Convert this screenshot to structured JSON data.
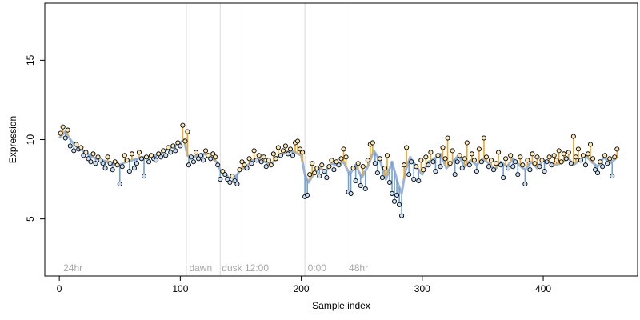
{
  "chart_data": {
    "type": "scatter",
    "title": "",
    "xlabel": "Sample index",
    "ylabel": "Expression",
    "xlim": [
      -12,
      478
    ],
    "ylim": [
      1.4,
      18.6
    ],
    "x_ticks": [
      0,
      100,
      200,
      300,
      400
    ],
    "y_ticks": [
      5,
      10,
      15
    ],
    "grid": false,
    "vlines": [
      105,
      133,
      151,
      203,
      237
    ],
    "annotations": [
      {
        "text": "24hr",
        "x": 2
      },
      {
        "text": "dawn",
        "x": 106
      },
      {
        "text": "dusk",
        "x": 133
      },
      {
        "text": "12:00",
        "x": 152
      },
      {
        "text": "0:00",
        "x": 204
      },
      {
        "text": "48hr",
        "x": 238
      }
    ],
    "colors": {
      "fit_line": "#9bb5d8",
      "residual_above": "#f5a623",
      "residual_below": "#6fa0d8",
      "point_fill": "#fde9b8",
      "point_fill_below": "#c9def3",
      "point_stroke": "#000000",
      "vline": "#d9d9d9",
      "annotation": "#a8a8a8"
    },
    "series": [
      {
        "x": [
          0,
          5,
          10,
          15,
          20,
          25,
          30,
          35,
          40,
          45,
          50,
          55,
          60,
          65,
          70,
          75,
          80,
          85,
          90,
          95,
          100,
          103,
          106,
          110,
          115,
          120,
          125,
          130,
          133,
          136,
          140,
          145,
          150,
          155,
          160,
          165,
          170,
          175,
          180,
          185,
          190,
          195,
          200,
          203,
          206,
          210,
          215,
          220,
          225,
          230,
          235,
          240,
          245,
          250,
          255,
          260,
          265,
          270,
          275,
          280,
          283,
          286,
          290,
          295,
          300,
          305,
          310,
          315,
          320,
          325,
          330,
          335,
          340,
          345,
          350,
          355,
          360,
          365,
          370,
          375,
          380,
          385,
          390,
          395,
          400,
          405,
          410,
          415,
          420,
          425,
          430,
          435,
          440,
          445,
          450,
          455,
          460
        ],
        "y": [
          10.1,
          10.5,
          9.9,
          9.5,
          9.3,
          9.0,
          8.8,
          8.7,
          8.6,
          8.4,
          8.4,
          8.6,
          8.7,
          8.8,
          8.9,
          8.9,
          9.0,
          9.2,
          9.4,
          9.6,
          9.8,
          10.0,
          9.0,
          8.9,
          9.0,
          9.1,
          8.9,
          8.6,
          8.1,
          7.9,
          7.6,
          7.6,
          8.1,
          8.3,
          8.7,
          8.8,
          8.6,
          8.4,
          8.9,
          9.1,
          9.3,
          9.2,
          9.0,
          7.8,
          7.3,
          7.8,
          8.2,
          8.0,
          8.5,
          8.4,
          8.6,
          7.8,
          8.4,
          7.6,
          8.3,
          9.3,
          8.7,
          7.5,
          8.6,
          7.2,
          6.6,
          8.0,
          8.9,
          8.3,
          7.8,
          8.6,
          8.8,
          9.1,
          8.2,
          8.6,
          9.0,
          8.3,
          8.7,
          8.4,
          8.8,
          8.5,
          8.1,
          8.6,
          8.3,
          8.8,
          8.4,
          8.1,
          8.6,
          8.2,
          8.7,
          8.6,
          8.4,
          8.5,
          8.9,
          8.4,
          8.7,
          9.0,
          8.6,
          8.3,
          8.9,
          8.5,
          8.8
        ]
      }
    ],
    "points": [
      {
        "x": 1,
        "y": 10.4
      },
      {
        "x": 3,
        "y": 10.8
      },
      {
        "x": 5,
        "y": 10.1
      },
      {
        "x": 7,
        "y": 10.6
      },
      {
        "x": 9,
        "y": 9.6
      },
      {
        "x": 12,
        "y": 9.3
      },
      {
        "x": 14,
        "y": 9.7
      },
      {
        "x": 16,
        "y": 9.4
      },
      {
        "x": 18,
        "y": 9.5
      },
      {
        "x": 20,
        "y": 9.0
      },
      {
        "x": 22,
        "y": 9.2
      },
      {
        "x": 24,
        "y": 8.8
      },
      {
        "x": 26,
        "y": 8.6
      },
      {
        "x": 28,
        "y": 9.1
      },
      {
        "x": 30,
        "y": 8.5
      },
      {
        "x": 32,
        "y": 8.9
      },
      {
        "x": 34,
        "y": 8.7
      },
      {
        "x": 36,
        "y": 8.5
      },
      {
        "x": 38,
        "y": 8.2
      },
      {
        "x": 40,
        "y": 8.9
      },
      {
        "x": 42,
        "y": 8.5
      },
      {
        "x": 44,
        "y": 8.1
      },
      {
        "x": 46,
        "y": 8.6
      },
      {
        "x": 48,
        "y": 8.4
      },
      {
        "x": 50,
        "y": 7.2
      },
      {
        "x": 52,
        "y": 8.3
      },
      {
        "x": 54,
        "y": 9.0
      },
      {
        "x": 56,
        "y": 8.7
      },
      {
        "x": 58,
        "y": 8.0
      },
      {
        "x": 60,
        "y": 9.1
      },
      {
        "x": 62,
        "y": 8.2
      },
      {
        "x": 64,
        "y": 8.5
      },
      {
        "x": 66,
        "y": 9.2
      },
      {
        "x": 68,
        "y": 8.8
      },
      {
        "x": 70,
        "y": 7.7
      },
      {
        "x": 72,
        "y": 8.9
      },
      {
        "x": 74,
        "y": 8.6
      },
      {
        "x": 76,
        "y": 9.0
      },
      {
        "x": 78,
        "y": 8.8
      },
      {
        "x": 80,
        "y": 8.7
      },
      {
        "x": 82,
        "y": 9.1
      },
      {
        "x": 84,
        "y": 8.9
      },
      {
        "x": 86,
        "y": 9.3
      },
      {
        "x": 88,
        "y": 9.0
      },
      {
        "x": 90,
        "y": 9.5
      },
      {
        "x": 92,
        "y": 9.2
      },
      {
        "x": 94,
        "y": 9.6
      },
      {
        "x": 96,
        "y": 9.3
      },
      {
        "x": 98,
        "y": 9.8
      },
      {
        "x": 100,
        "y": 9.6
      },
      {
        "x": 102,
        "y": 10.9
      },
      {
        "x": 104,
        "y": 9.9
      },
      {
        "x": 106,
        "y": 10.5
      },
      {
        "x": 107,
        "y": 8.4
      },
      {
        "x": 109,
        "y": 8.9
      },
      {
        "x": 111,
        "y": 8.6
      },
      {
        "x": 113,
        "y": 9.2
      },
      {
        "x": 115,
        "y": 8.8
      },
      {
        "x": 117,
        "y": 9.0
      },
      {
        "x": 119,
        "y": 8.7
      },
      {
        "x": 121,
        "y": 9.3
      },
      {
        "x": 123,
        "y": 9.0
      },
      {
        "x": 125,
        "y": 8.8
      },
      {
        "x": 127,
        "y": 9.1
      },
      {
        "x": 129,
        "y": 8.9
      },
      {
        "x": 131,
        "y": 8.4
      },
      {
        "x": 133,
        "y": 7.5
      },
      {
        "x": 135,
        "y": 8.0
      },
      {
        "x": 137,
        "y": 7.8
      },
      {
        "x": 139,
        "y": 7.5
      },
      {
        "x": 141,
        "y": 7.3
      },
      {
        "x": 143,
        "y": 7.7
      },
      {
        "x": 145,
        "y": 7.4
      },
      {
        "x": 147,
        "y": 7.2
      },
      {
        "x": 149,
        "y": 8.1
      },
      {
        "x": 151,
        "y": 8.6
      },
      {
        "x": 153,
        "y": 8.4
      },
      {
        "x": 155,
        "y": 8.2
      },
      {
        "x": 157,
        "y": 8.8
      },
      {
        "x": 159,
        "y": 8.5
      },
      {
        "x": 161,
        "y": 9.3
      },
      {
        "x": 163,
        "y": 8.7
      },
      {
        "x": 165,
        "y": 9.0
      },
      {
        "x": 167,
        "y": 8.6
      },
      {
        "x": 169,
        "y": 8.9
      },
      {
        "x": 171,
        "y": 8.3
      },
      {
        "x": 173,
        "y": 8.7
      },
      {
        "x": 175,
        "y": 8.4
      },
      {
        "x": 177,
        "y": 9.1
      },
      {
        "x": 179,
        "y": 8.8
      },
      {
        "x": 181,
        "y": 9.5
      },
      {
        "x": 183,
        "y": 9.0
      },
      {
        "x": 185,
        "y": 9.3
      },
      {
        "x": 187,
        "y": 9.6
      },
      {
        "x": 189,
        "y": 9.1
      },
      {
        "x": 191,
        "y": 9.4
      },
      {
        "x": 193,
        "y": 9.0
      },
      {
        "x": 195,
        "y": 9.8
      },
      {
        "x": 197,
        "y": 9.9
      },
      {
        "x": 199,
        "y": 9.4
      },
      {
        "x": 201,
        "y": 9.2
      },
      {
        "x": 203,
        "y": 6.4
      },
      {
        "x": 205,
        "y": 6.5
      },
      {
        "x": 207,
        "y": 7.8
      },
      {
        "x": 209,
        "y": 8.5
      },
      {
        "x": 211,
        "y": 7.9
      },
      {
        "x": 213,
        "y": 8.2
      },
      {
        "x": 215,
        "y": 7.7
      },
      {
        "x": 217,
        "y": 8.4
      },
      {
        "x": 219,
        "y": 8.0
      },
      {
        "x": 221,
        "y": 7.6
      },
      {
        "x": 223,
        "y": 8.3
      },
      {
        "x": 225,
        "y": 8.7
      },
      {
        "x": 227,
        "y": 8.1
      },
      {
        "x": 229,
        "y": 8.6
      },
      {
        "x": 231,
        "y": 8.4
      },
      {
        "x": 233,
        "y": 8.8
      },
      {
        "x": 235,
        "y": 9.4
      },
      {
        "x": 237,
        "y": 8.9
      },
      {
        "x": 239,
        "y": 6.7
      },
      {
        "x": 241,
        "y": 6.6
      },
      {
        "x": 243,
        "y": 8.2
      },
      {
        "x": 245,
        "y": 7.4
      },
      {
        "x": 247,
        "y": 8.5
      },
      {
        "x": 249,
        "y": 7.1
      },
      {
        "x": 251,
        "y": 8.3
      },
      {
        "x": 253,
        "y": 6.9
      },
      {
        "x": 255,
        "y": 8.7
      },
      {
        "x": 257,
        "y": 9.7
      },
      {
        "x": 259,
        "y": 9.8
      },
      {
        "x": 261,
        "y": 8.5
      },
      {
        "x": 263,
        "y": 7.9
      },
      {
        "x": 265,
        "y": 8.8
      },
      {
        "x": 267,
        "y": 7.6
      },
      {
        "x": 269,
        "y": 8.2
      },
      {
        "x": 271,
        "y": 9.0
      },
      {
        "x": 273,
        "y": 7.3
      },
      {
        "x": 275,
        "y": 6.6
      },
      {
        "x": 277,
        "y": 6.1
      },
      {
        "x": 279,
        "y": 6.5
      },
      {
        "x": 281,
        "y": 5.9
      },
      {
        "x": 283,
        "y": 5.2
      },
      {
        "x": 285,
        "y": 8.4
      },
      {
        "x": 287,
        "y": 9.5
      },
      {
        "x": 289,
        "y": 7.8
      },
      {
        "x": 291,
        "y": 8.6
      },
      {
        "x": 293,
        "y": 7.5
      },
      {
        "x": 295,
        "y": 8.3
      },
      {
        "x": 297,
        "y": 7.4
      },
      {
        "x": 299,
        "y": 8.7
      },
      {
        "x": 301,
        "y": 8.1
      },
      {
        "x": 303,
        "y": 8.9
      },
      {
        "x": 305,
        "y": 8.4
      },
      {
        "x": 307,
        "y": 9.2
      },
      {
        "x": 309,
        "y": 8.6
      },
      {
        "x": 311,
        "y": 8.0
      },
      {
        "x": 313,
        "y": 9.0
      },
      {
        "x": 315,
        "y": 8.3
      },
      {
        "x": 317,
        "y": 9.5
      },
      {
        "x": 319,
        "y": 8.8
      },
      {
        "x": 321,
        "y": 10.1
      },
      {
        "x": 323,
        "y": 8.5
      },
      {
        "x": 325,
        "y": 9.3
      },
      {
        "x": 327,
        "y": 7.8
      },
      {
        "x": 329,
        "y": 8.6
      },
      {
        "x": 331,
        "y": 9.0
      },
      {
        "x": 333,
        "y": 8.2
      },
      {
        "x": 335,
        "y": 8.8
      },
      {
        "x": 337,
        "y": 9.8
      },
      {
        "x": 339,
        "y": 8.4
      },
      {
        "x": 341,
        "y": 9.1
      },
      {
        "x": 343,
        "y": 8.7
      },
      {
        "x": 345,
        "y": 8.0
      },
      {
        "x": 347,
        "y": 9.4
      },
      {
        "x": 349,
        "y": 8.6
      },
      {
        "x": 351,
        "y": 10.1
      },
      {
        "x": 353,
        "y": 8.9
      },
      {
        "x": 355,
        "y": 8.3
      },
      {
        "x": 357,
        "y": 8.7
      },
      {
        "x": 359,
        "y": 8.1
      },
      {
        "x": 361,
        "y": 8.5
      },
      {
        "x": 363,
        "y": 9.2
      },
      {
        "x": 365,
        "y": 8.4
      },
      {
        "x": 367,
        "y": 7.6
      },
      {
        "x": 369,
        "y": 8.8
      },
      {
        "x": 371,
        "y": 8.2
      },
      {
        "x": 373,
        "y": 9.0
      },
      {
        "x": 375,
        "y": 8.3
      },
      {
        "x": 377,
        "y": 8.6
      },
      {
        "x": 379,
        "y": 7.8
      },
      {
        "x": 381,
        "y": 8.9
      },
      {
        "x": 383,
        "y": 8.4
      },
      {
        "x": 385,
        "y": 7.2
      },
      {
        "x": 387,
        "y": 8.7
      },
      {
        "x": 389,
        "y": 8.1
      },
      {
        "x": 391,
        "y": 9.1
      },
      {
        "x": 393,
        "y": 8.5
      },
      {
        "x": 395,
        "y": 8.9
      },
      {
        "x": 397,
        "y": 8.3
      },
      {
        "x": 399,
        "y": 8.7
      },
      {
        "x": 401,
        "y": 8.0
      },
      {
        "x": 403,
        "y": 8.6
      },
      {
        "x": 405,
        "y": 8.9
      },
      {
        "x": 407,
        "y": 8.4
      },
      {
        "x": 409,
        "y": 9.0
      },
      {
        "x": 411,
        "y": 8.7
      },
      {
        "x": 413,
        "y": 9.3
      },
      {
        "x": 415,
        "y": 8.6
      },
      {
        "x": 417,
        "y": 9.1
      },
      {
        "x": 419,
        "y": 8.8
      },
      {
        "x": 421,
        "y": 9.2
      },
      {
        "x": 423,
        "y": 8.5
      },
      {
        "x": 425,
        "y": 10.2
      },
      {
        "x": 427,
        "y": 8.9
      },
      {
        "x": 429,
        "y": 9.4
      },
      {
        "x": 431,
        "y": 8.7
      },
      {
        "x": 433,
        "y": 9.0
      },
      {
        "x": 435,
        "y": 8.4
      },
      {
        "x": 437,
        "y": 9.1
      },
      {
        "x": 439,
        "y": 9.7
      },
      {
        "x": 441,
        "y": 8.8
      },
      {
        "x": 443,
        "y": 8.1
      },
      {
        "x": 445,
        "y": 7.9
      },
      {
        "x": 447,
        "y": 8.6
      },
      {
        "x": 449,
        "y": 8.3
      },
      {
        "x": 451,
        "y": 9.0
      },
      {
        "x": 453,
        "y": 8.5
      },
      {
        "x": 455,
        "y": 8.8
      },
      {
        "x": 457,
        "y": 7.7
      },
      {
        "x": 459,
        "y": 8.9
      },
      {
        "x": 461,
        "y": 9.4
      }
    ]
  }
}
